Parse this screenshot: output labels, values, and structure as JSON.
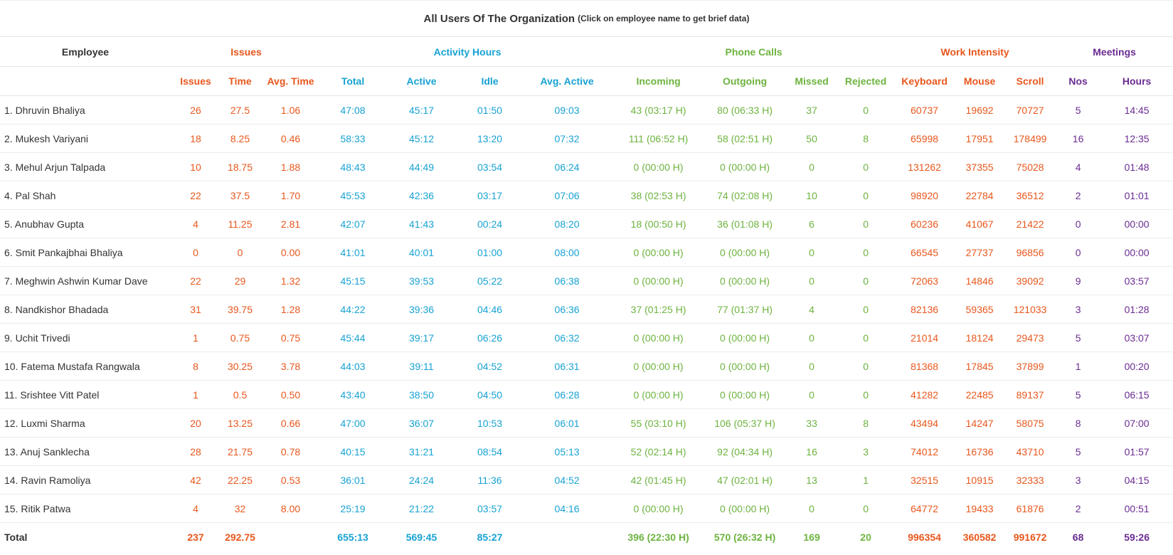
{
  "title": "All Users Of The Organization",
  "subtitle": "(Click on employee name to get brief data)",
  "groups": {
    "employee": "Employee",
    "issues": "Issues",
    "activity": "Activity Hours",
    "phone": "Phone Calls",
    "work": "Work Intensity",
    "meetings": "Meetings"
  },
  "columns": [
    "Issues",
    "Time",
    "Avg. Time",
    "Total",
    "Active",
    "Idle",
    "Avg. Active",
    "Incoming",
    "Outgoing",
    "Missed",
    "Rejected",
    "Keyboard",
    "Mouse",
    "Scroll",
    "Nos",
    "Hours"
  ],
  "rows": [
    {
      "name": "1. Dhruvin Bhaliya",
      "cells": [
        "26",
        "27.5",
        "1.06",
        "47:08",
        "45:17",
        "01:50",
        "09:03",
        "43 (03:17 H)",
        "80 (06:33 H)",
        "37",
        "0",
        "60737",
        "19692",
        "70727",
        "5",
        "14:45"
      ]
    },
    {
      "name": "2. Mukesh Variyani",
      "cells": [
        "18",
        "8.25",
        "0.46",
        "58:33",
        "45:12",
        "13:20",
        "07:32",
        "111 (06:52 H)",
        "58 (02:51 H)",
        "50",
        "8",
        "65998",
        "17951",
        "178499",
        "16",
        "12:35"
      ]
    },
    {
      "name": "3. Mehul Arjun Talpada",
      "cells": [
        "10",
        "18.75",
        "1.88",
        "48:43",
        "44:49",
        "03:54",
        "06:24",
        "0 (00:00 H)",
        "0 (00:00 H)",
        "0",
        "0",
        "131262",
        "37355",
        "75028",
        "4",
        "01:48"
      ]
    },
    {
      "name": "4. Pal Shah",
      "cells": [
        "22",
        "37.5",
        "1.70",
        "45:53",
        "42:36",
        "03:17",
        "07:06",
        "38 (02:53 H)",
        "74 (02:08 H)",
        "10",
        "0",
        "98920",
        "22784",
        "36512",
        "2",
        "01:01"
      ]
    },
    {
      "name": "5. Anubhav Gupta",
      "cells": [
        "4",
        "11.25",
        "2.81",
        "42:07",
        "41:43",
        "00:24",
        "08:20",
        "18 (00:50 H)",
        "36 (01:08 H)",
        "6",
        "0",
        "60236",
        "41067",
        "21422",
        "0",
        "00:00"
      ]
    },
    {
      "name": "6. Smit Pankajbhai Bhaliya",
      "cells": [
        "0",
        "0",
        "0.00",
        "41:01",
        "40:01",
        "01:00",
        "08:00",
        "0 (00:00 H)",
        "0 (00:00 H)",
        "0",
        "0",
        "66545",
        "27737",
        "96856",
        "0",
        "00:00"
      ]
    },
    {
      "name": "7. Meghwin Ashwin Kumar Dave",
      "cells": [
        "22",
        "29",
        "1.32",
        "45:15",
        "39:53",
        "05:22",
        "06:38",
        "0 (00:00 H)",
        "0 (00:00 H)",
        "0",
        "0",
        "72063",
        "14846",
        "39092",
        "9",
        "03:57"
      ]
    },
    {
      "name": "8. Nandkishor Bhadada",
      "cells": [
        "31",
        "39.75",
        "1.28",
        "44:22",
        "39:36",
        "04:46",
        "06:36",
        "37 (01:25 H)",
        "77 (01:37 H)",
        "4",
        "0",
        "82136",
        "59365",
        "121033",
        "3",
        "01:28"
      ]
    },
    {
      "name": "9. Uchit Trivedi",
      "cells": [
        "1",
        "0.75",
        "0.75",
        "45:44",
        "39:17",
        "06:26",
        "06:32",
        "0 (00:00 H)",
        "0 (00:00 H)",
        "0",
        "0",
        "21014",
        "18124",
        "29473",
        "5",
        "03:07"
      ]
    },
    {
      "name": "10. Fatema Mustafa Rangwala",
      "cells": [
        "8",
        "30.25",
        "3.78",
        "44:03",
        "39:11",
        "04:52",
        "06:31",
        "0 (00:00 H)",
        "0 (00:00 H)",
        "0",
        "0",
        "81368",
        "17845",
        "37899",
        "1",
        "00:20"
      ]
    },
    {
      "name": "11. Srishtee Vitt Patel",
      "cells": [
        "1",
        "0.5",
        "0.50",
        "43:40",
        "38:50",
        "04:50",
        "06:28",
        "0 (00:00 H)",
        "0 (00:00 H)",
        "0",
        "0",
        "41282",
        "22485",
        "89137",
        "5",
        "06:15"
      ]
    },
    {
      "name": "12. Luxmi Sharma",
      "cells": [
        "20",
        "13.25",
        "0.66",
        "47:00",
        "36:07",
        "10:53",
        "06:01",
        "55 (03:10 H)",
        "106 (05:37 H)",
        "33",
        "8",
        "43494",
        "14247",
        "58075",
        "8",
        "07:00"
      ]
    },
    {
      "name": "13. Anuj Sanklecha",
      "cells": [
        "28",
        "21.75",
        "0.78",
        "40:15",
        "31:21",
        "08:54",
        "05:13",
        "52 (02:14 H)",
        "92 (04:34 H)",
        "16",
        "3",
        "74012",
        "16736",
        "43710",
        "5",
        "01:57"
      ]
    },
    {
      "name": "14. Ravin Ramoliya",
      "cells": [
        "42",
        "22.25",
        "0.53",
        "36:01",
        "24:24",
        "11:36",
        "04:52",
        "42 (01:45 H)",
        "47 (02:01 H)",
        "13",
        "1",
        "32515",
        "10915",
        "32333",
        "3",
        "04:15"
      ]
    },
    {
      "name": "15. Ritik Patwa",
      "cells": [
        "4",
        "32",
        "8.00",
        "25:19",
        "21:22",
        "03:57",
        "04:16",
        "0 (00:00 H)",
        "0 (00:00 H)",
        "0",
        "0",
        "64772",
        "19433",
        "61876",
        "2",
        "00:51"
      ]
    }
  ],
  "total": {
    "label": "Total",
    "cells": [
      "237",
      "292.75",
      "",
      "655:13",
      "569:45",
      "85:27",
      "",
      "396 (22:30 H)",
      "570 (26:32 H)",
      "169",
      "20",
      "996354",
      "360582",
      "991672",
      "68",
      "59:26"
    ]
  },
  "colors": {
    "issues": "#e8571c",
    "activity": "#17a2d3",
    "phone": "#6db33f",
    "work": "#e8571c",
    "meetings": "#6a2c91"
  }
}
